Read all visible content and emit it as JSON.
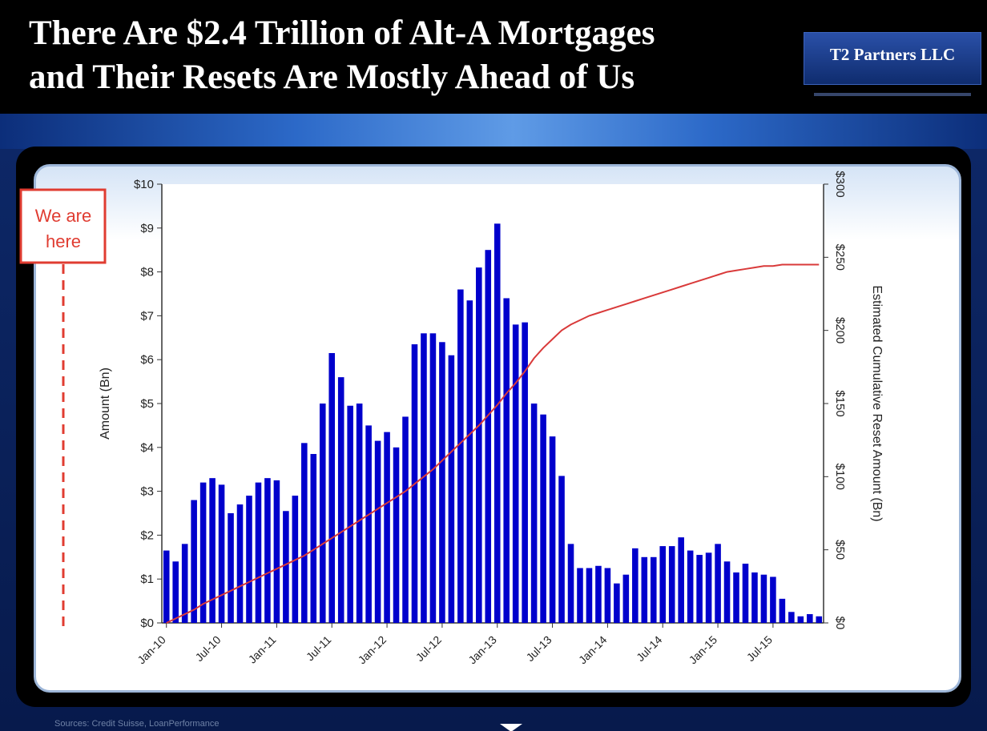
{
  "slide": {
    "title_line1": "There Are $2.4 Trillion of Alt-A Mortgages",
    "title_line2": "and Their Resets Are Mostly Ahead of Us",
    "brand": "T2 Partners LLC",
    "source": "Sources: Credit Suisse, LoanPerformance",
    "annotation_line1": "We are",
    "annotation_line2": "here"
  },
  "colors": {
    "bars": "#0000cc",
    "line": "#d93a3a",
    "annotation": "#e03c31",
    "axis": "#333333"
  },
  "chart_data": {
    "type": "bar",
    "title": "",
    "ylabel": "Amount (Bn)",
    "y2label": "Estimated Cumulative Reset Amount (Bn)",
    "ylim": [
      0,
      10
    ],
    "y2lim": [
      0,
      300
    ],
    "yticks": [
      "$0",
      "$1",
      "$2",
      "$3",
      "$4",
      "$5",
      "$6",
      "$7",
      "$8",
      "$9",
      "$10"
    ],
    "y2ticks": [
      "$0",
      "$50",
      "$100",
      "$150",
      "$200",
      "$250",
      "$300"
    ],
    "xtick_labels": [
      "Jan-10",
      "Jul-10",
      "Jan-11",
      "Jul-11",
      "Jan-12",
      "Jul-12",
      "Jan-13",
      "Jul-13",
      "Jan-14",
      "Jul-14",
      "Jan-15",
      "Jul-15"
    ],
    "start_month": "Jan-10",
    "series": [
      {
        "name": "Amount (Bn)",
        "kind": "bar",
        "axis": "left",
        "values": [
          1.65,
          1.4,
          1.8,
          2.8,
          3.2,
          3.3,
          3.15,
          2.5,
          2.7,
          2.9,
          3.2,
          3.3,
          3.25,
          2.55,
          2.9,
          4.1,
          3.85,
          5.0,
          6.15,
          5.6,
          4.95,
          5.0,
          4.5,
          4.15,
          4.35,
          4.0,
          4.7,
          6.35,
          6.6,
          6.6,
          6.4,
          6.1,
          7.6,
          7.35,
          8.1,
          8.5,
          9.1,
          7.4,
          6.8,
          6.85,
          5.0,
          4.75,
          4.25,
          3.35,
          1.8,
          1.25,
          1.25,
          1.3,
          1.25,
          0.9,
          1.1,
          1.7,
          1.5,
          1.5,
          1.75,
          1.75,
          1.95,
          1.65,
          1.55,
          1.6,
          1.8,
          1.4,
          1.15,
          1.35,
          1.15,
          1.1,
          1.05,
          0.55,
          0.25,
          0.15,
          0.2,
          0.15
        ]
      },
      {
        "name": "Estimated Cumulative Reset Amount (Bn)",
        "kind": "line",
        "axis": "right",
        "values": [
          0,
          3,
          6,
          9,
          13,
          16,
          19,
          22,
          25,
          28,
          31,
          34,
          37,
          40,
          43,
          46,
          50,
          54,
          58,
          62,
          66,
          70,
          74,
          78,
          82,
          86,
          90,
          95,
          100,
          105,
          111,
          117,
          123,
          129,
          135,
          142,
          149,
          157,
          164,
          172,
          181,
          188,
          194,
          200,
          204,
          207,
          210,
          212,
          214,
          216,
          218,
          220,
          222,
          224,
          226,
          228,
          230,
          232,
          234,
          236,
          238,
          240,
          241,
          242,
          243,
          244,
          244,
          245,
          245,
          245,
          245,
          245
        ]
      }
    ]
  }
}
